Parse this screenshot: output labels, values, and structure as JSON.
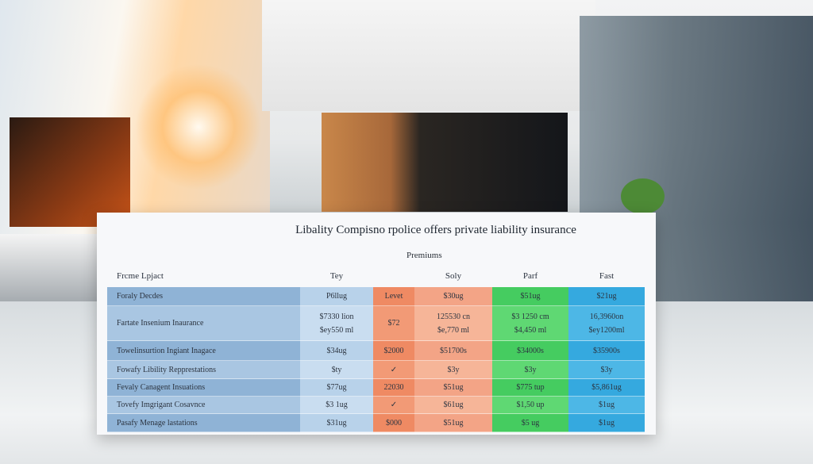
{
  "title": "Libality Compisno rpolice offers private liability insurance",
  "subheader": "Premiums",
  "table": {
    "headers": [
      "Frcme Lpjact",
      "Tey",
      "Soly",
      "Parf",
      "Fast"
    ],
    "rows": [
      [
        [
          "Foraly Decdes"
        ],
        [
          "P6llug"
        ],
        [
          "Levet"
        ],
        [
          "$30ug"
        ],
        [
          "$51ug"
        ],
        [
          "$21ug"
        ]
      ],
      [
        [
          "Fartate Insenium Inaurance"
        ],
        [
          "$7330 lion",
          "$ey550 ml"
        ],
        [
          "$72"
        ],
        [
          "125530 cn",
          "$e,770 ml"
        ],
        [
          "$3 1250 cm",
          "$4,450 ml"
        ],
        [
          "16,3960on",
          "$ey1200ml"
        ]
      ],
      [
        [
          "Towelinsurtion Ingiant Inagace"
        ],
        [
          "$34ug"
        ],
        [
          "$2000"
        ],
        [
          "$51700s"
        ],
        [
          "$34000s"
        ],
        [
          "$35900s"
        ]
      ],
      [
        [
          "Fowafy Libility Repprestations"
        ],
        [
          "$ty"
        ],
        [
          "✓"
        ],
        [
          "$3y"
        ],
        [
          "$3y"
        ],
        [
          "$3y"
        ]
      ],
      [
        [
          "Fevaly Canagent Insuations"
        ],
        [
          "$77ug"
        ],
        [
          "22030"
        ],
        [
          "$51ug"
        ],
        [
          "$775 tup"
        ],
        [
          "$5,861ug"
        ]
      ],
      [
        [
          "Tovefy Imgrigant Cosavnce"
        ],
        [
          "$3 1ug"
        ],
        [
          "✓"
        ],
        [
          "$61ug"
        ],
        [
          "$1,50 up"
        ],
        [
          "$1ug"
        ]
      ],
      [
        [
          "Pasafy Menage lastations"
        ],
        [
          "$31ug"
        ],
        [
          "$000"
        ],
        [
          "$51ug"
        ],
        [
          "$5 ug"
        ],
        [
          "$1ug"
        ]
      ]
    ]
  }
}
